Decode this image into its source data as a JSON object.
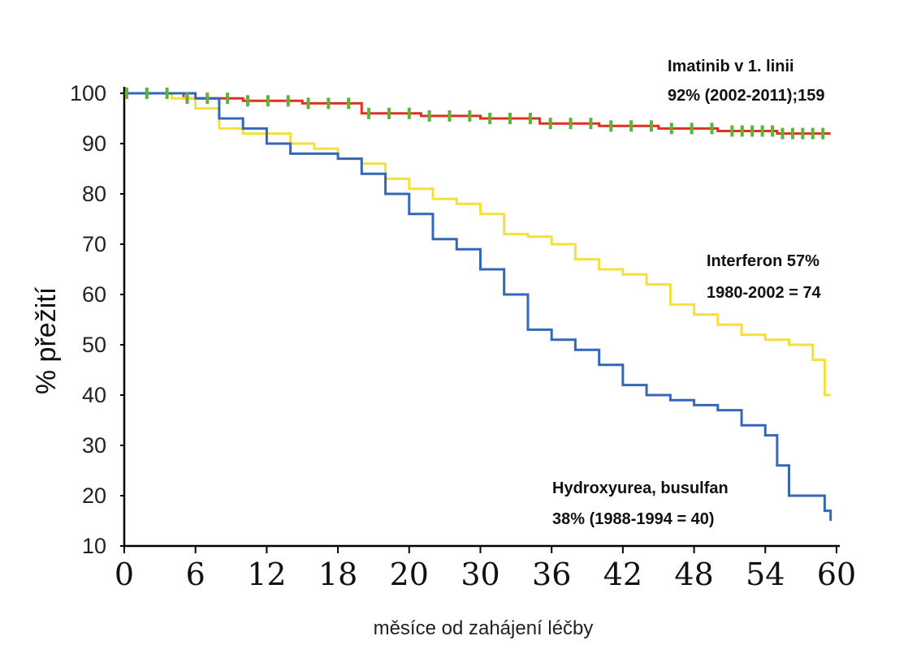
{
  "chart_data": {
    "type": "line",
    "xlabel": "měsíce od zahájení léčby",
    "ylabel": "% přežití",
    "xticks": [
      "0",
      "6",
      "12",
      "18",
      "20",
      "30",
      "36",
      "42",
      "48",
      "54",
      "60"
    ],
    "yticks": [
      "10",
      "20",
      "30",
      "40",
      "50",
      "60",
      "70",
      "80",
      "90",
      "100"
    ],
    "ylim": [
      10,
      100
    ],
    "x_range_index": [
      0,
      60
    ],
    "grid": false,
    "series": [
      {
        "name": "Imatinib",
        "color": "#e03020",
        "censor_color": "#5db335",
        "points": [
          [
            0,
            100
          ],
          [
            5,
            99
          ],
          [
            10,
            98.5
          ],
          [
            15,
            98
          ],
          [
            20,
            96
          ],
          [
            25,
            95.5
          ],
          [
            30,
            95
          ],
          [
            35,
            94
          ],
          [
            40,
            93.5
          ],
          [
            45,
            93
          ],
          [
            50,
            92.5
          ],
          [
            55,
            92
          ],
          [
            59.5,
            92
          ]
        ]
      },
      {
        "name": "Interferon",
        "color": "#f5e03a",
        "points": [
          [
            0,
            100
          ],
          [
            4,
            99
          ],
          [
            6,
            97
          ],
          [
            8,
            93
          ],
          [
            10,
            92
          ],
          [
            12,
            92
          ],
          [
            14,
            90
          ],
          [
            16,
            89
          ],
          [
            18,
            87
          ],
          [
            20,
            86
          ],
          [
            22,
            83
          ],
          [
            24,
            81
          ],
          [
            26,
            79
          ],
          [
            28,
            78
          ],
          [
            30,
            76
          ],
          [
            32,
            72
          ],
          [
            34,
            71.5
          ],
          [
            36,
            70
          ],
          [
            38,
            67
          ],
          [
            40,
            65
          ],
          [
            42,
            64
          ],
          [
            44,
            62
          ],
          [
            46,
            58
          ],
          [
            48,
            56
          ],
          [
            50,
            54
          ],
          [
            52,
            52
          ],
          [
            54,
            51
          ],
          [
            56,
            50
          ],
          [
            58,
            47
          ],
          [
            59,
            40
          ],
          [
            59.5,
            40
          ]
        ]
      },
      {
        "name": "Hydroxyurea, busulfan",
        "color": "#3567b8",
        "points": [
          [
            0,
            100
          ],
          [
            6,
            99
          ],
          [
            8,
            95
          ],
          [
            10,
            93
          ],
          [
            12,
            90
          ],
          [
            14,
            88
          ],
          [
            16,
            88
          ],
          [
            18,
            87
          ],
          [
            20,
            84
          ],
          [
            22,
            80
          ],
          [
            24,
            76
          ],
          [
            26,
            71
          ],
          [
            28,
            69
          ],
          [
            30,
            65
          ],
          [
            32,
            60
          ],
          [
            34,
            53
          ],
          [
            36,
            51
          ],
          [
            38,
            49
          ],
          [
            40,
            46
          ],
          [
            42,
            42
          ],
          [
            44,
            40
          ],
          [
            46,
            39
          ],
          [
            48,
            38
          ],
          [
            50,
            37
          ],
          [
            52,
            34
          ],
          [
            54,
            32
          ],
          [
            55,
            26
          ],
          [
            56,
            20
          ],
          [
            58,
            20
          ],
          [
            59,
            17
          ],
          [
            59.5,
            15
          ]
        ]
      }
    ],
    "annotations": {
      "imatinib": [
        "Imatinib v 1. linii",
        "92%  (2002-2011);159"
      ],
      "interferon": [
        "Interferon 57%",
        "1980-2002 = 74"
      ],
      "hydroxyurea": [
        "Hydroxyurea, busulfan",
        "38%  (1988-1994 = 40)"
      ]
    }
  }
}
